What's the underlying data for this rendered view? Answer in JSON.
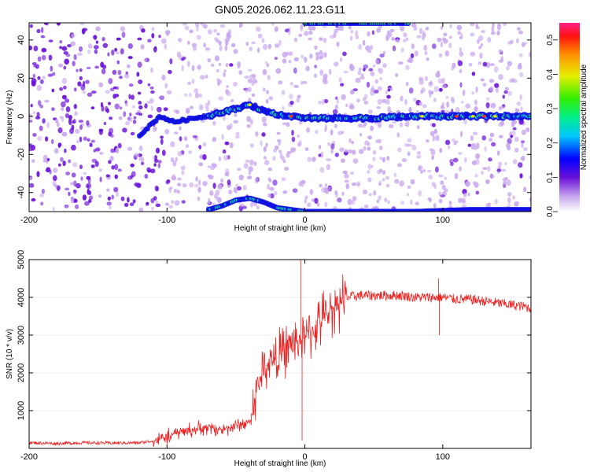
{
  "title": "GN05.2026.062.11.23.G11",
  "chart_data": [
    {
      "type": "heatmap",
      "xlabel": "Height of straight line (km)",
      "ylabel": "Frequency (Hz)",
      "xlim": [
        -200,
        164
      ],
      "ylim": [
        -50,
        49
      ],
      "xticks": [
        -200,
        -100,
        0,
        100
      ],
      "yticks": [
        -40,
        -20,
        0,
        20,
        40
      ],
      "colorbar": {
        "label": "Normalized spectral amplitude",
        "range": [
          0.0,
          0.55
        ],
        "ticks": [
          0.0,
          0.1,
          0.2,
          0.3,
          0.4,
          0.5
        ],
        "tick_labels": [
          "0.0",
          "0.1",
          "0.2",
          "0.3",
          "0.4",
          "0.5"
        ]
      },
      "ridge": {
        "x": [
          -120,
          -105,
          -95,
          -80,
          -65,
          -50,
          -40,
          -30,
          -20,
          -10,
          0,
          20,
          50,
          80,
          100,
          130,
          164
        ],
        "y": [
          -10,
          0,
          -3,
          -1,
          1,
          4,
          6,
          3,
          1,
          0,
          -1,
          -1,
          -1,
          0,
          0,
          0,
          0
        ]
      },
      "lower_band": {
        "x": [
          -70,
          -60,
          -50,
          -40,
          -30,
          -20,
          -10,
          0,
          40,
          80,
          120,
          164
        ],
        "y": [
          -49,
          -47,
          -44,
          -43,
          -45,
          -48,
          -49,
          -50,
          -50,
          -50,
          -49,
          -49
        ]
      },
      "colors": {
        "background": "#ffffff",
        "noise_dense": "#6a10d8",
        "noise_light": "#c9a8ee"
      }
    },
    {
      "type": "line",
      "xlabel": "Height of straight line (km)",
      "ylabel": "SNR (10 * v/v)",
      "xlim": [
        -200,
        164
      ],
      "ylim": [
        0,
        5000
      ],
      "xticks": [
        -200,
        -100,
        0,
        100
      ],
      "yticks": [
        1000,
        2000,
        3000,
        4000,
        5000
      ],
      "series": [
        {
          "name": "SNR",
          "color": "#ee2020",
          "x": [
            -200,
            -180,
            -160,
            -140,
            -120,
            -110,
            -100,
            -90,
            -80,
            -70,
            -60,
            -50,
            -40,
            -35,
            -30,
            -25,
            -20,
            -15,
            -10,
            -5,
            0,
            5,
            10,
            15,
            20,
            25,
            30,
            40,
            50,
            60,
            70,
            80,
            90,
            100,
            110,
            120,
            130,
            140,
            150,
            160,
            164
          ],
          "y": [
            150,
            130,
            150,
            140,
            150,
            200,
            300,
            450,
            500,
            550,
            500,
            600,
            700,
            1500,
            2100,
            2300,
            2400,
            2600,
            2750,
            2850,
            2900,
            3100,
            3300,
            3500,
            3700,
            3900,
            4000,
            4050,
            4050,
            4050,
            4050,
            4000,
            4000,
            4000,
            3950,
            3950,
            3900,
            3850,
            3800,
            3750,
            3700
          ]
        }
      ],
      "spikes": [
        {
          "x": -3,
          "y": 5000
        },
        {
          "x": -2,
          "y": 200
        },
        {
          "x": 97,
          "y": 4500
        },
        {
          "x": 97.5,
          "y": 3000
        }
      ]
    }
  ]
}
